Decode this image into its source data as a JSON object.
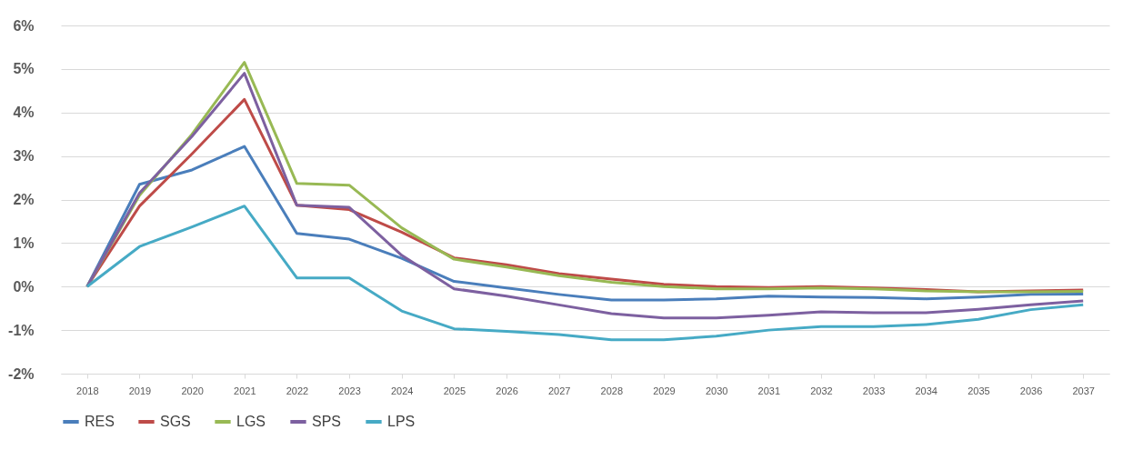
{
  "chart_data": {
    "type": "line",
    "categories": [
      "2018",
      "2019",
      "2020",
      "2021",
      "2022",
      "2023",
      "2024",
      "2025",
      "2026",
      "2027",
      "2028",
      "2029",
      "2030",
      "2031",
      "2032",
      "2033",
      "2034",
      "2035",
      "2036",
      "2037"
    ],
    "series": [
      {
        "name": "RES",
        "color": "#4a7ebb",
        "values": [
          0,
          2.35,
          2.68,
          3.22,
          1.22,
          1.09,
          0.65,
          0.12,
          -0.03,
          -0.18,
          -0.31,
          -0.31,
          -0.28,
          -0.22,
          -0.24,
          -0.25,
          -0.28,
          -0.24,
          -0.18,
          -0.17
        ]
      },
      {
        "name": "SGS",
        "color": "#be4b48",
        "values": [
          0,
          1.85,
          3.05,
          4.3,
          1.87,
          1.77,
          1.25,
          0.66,
          0.5,
          0.3,
          0.17,
          0.05,
          0.0,
          -0.02,
          0.0,
          -0.03,
          -0.07,
          -0.12,
          -0.1,
          -0.08
        ]
      },
      {
        "name": "LGS",
        "color": "#98b954",
        "values": [
          0,
          2.1,
          3.5,
          5.15,
          2.37,
          2.33,
          1.35,
          0.63,
          0.45,
          0.25,
          0.1,
          0.0,
          -0.05,
          -0.05,
          -0.03,
          -0.05,
          -0.1,
          -0.12,
          -0.12,
          -0.11
        ]
      },
      {
        "name": "SPS",
        "color": "#7d60a0",
        "values": [
          0,
          2.15,
          3.45,
          4.9,
          1.87,
          1.82,
          0.72,
          -0.05,
          -0.22,
          -0.42,
          -0.62,
          -0.72,
          -0.72,
          -0.66,
          -0.58,
          -0.6,
          -0.6,
          -0.52,
          -0.42,
          -0.33
        ]
      },
      {
        "name": "LPS",
        "color": "#46aac5",
        "values": [
          0,
          0.92,
          1.37,
          1.85,
          0.2,
          0.2,
          -0.56,
          -0.97,
          -1.03,
          -1.1,
          -1.22,
          -1.22,
          -1.14,
          -1.0,
          -0.92,
          -0.92,
          -0.87,
          -0.75,
          -0.53,
          -0.42
        ]
      }
    ],
    "ylim": [
      -2,
      6
    ],
    "yticks": [
      {
        "value": -2,
        "label": "-2%"
      },
      {
        "value": -1,
        "label": "-1%"
      },
      {
        "value": 0,
        "label": "0%"
      },
      {
        "value": 1,
        "label": "1%"
      },
      {
        "value": 2,
        "label": "2%"
      },
      {
        "value": 3,
        "label": "3%"
      },
      {
        "value": 4,
        "label": "4%"
      },
      {
        "value": 5,
        "label": "5%"
      },
      {
        "value": 6,
        "label": "6%"
      }
    ],
    "grid": "y",
    "legend": "bottom",
    "marker": "none",
    "line_style": "solid"
  }
}
